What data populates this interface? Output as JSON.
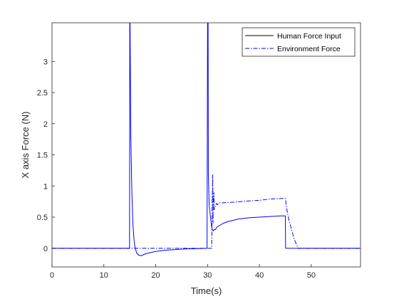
{
  "chart_data": {
    "type": "line",
    "title": "",
    "xlabel": "Time(s)",
    "ylabel": "X axis Force (N)",
    "xlim": [
      0,
      59.5
    ],
    "ylim": [
      -0.3,
      3.62
    ],
    "xticks": [
      0,
      10,
      20,
      30,
      40,
      50
    ],
    "yticks": [
      0,
      0.5,
      1,
      1.5,
      2,
      2.5,
      3
    ],
    "ytick_labels": [
      "0",
      "0.5",
      "1",
      "1.5",
      "2",
      "2.5",
      "3"
    ],
    "grid": false,
    "legend": {
      "placement": "top-right",
      "box": true
    },
    "colors": {
      "series": "#0000ff",
      "axes": "#262626"
    },
    "series": [
      {
        "name": "Human Force Input",
        "style": "solid",
        "x": [
          0,
          14.95,
          15.0,
          15.05,
          15.2,
          15.4,
          15.6,
          15.8,
          16.0,
          16.3,
          16.7,
          17.2,
          18.0,
          19.0,
          20.0,
          22.0,
          24.0,
          26.0,
          28.0,
          29.9,
          30.0,
          30.1,
          30.15,
          30.3,
          30.5,
          30.7,
          30.9,
          31.1,
          31.3,
          31.5,
          31.8,
          32.2,
          33.0,
          34.0,
          35.0,
          36.0,
          38.0,
          40.0,
          42.0,
          44.0,
          44.9,
          45.0,
          45.05,
          59.5
        ],
        "y": [
          0,
          0,
          3.62,
          3.62,
          1.8,
          0.9,
          0.4,
          0.15,
          0.02,
          -0.07,
          -0.11,
          -0.12,
          -0.09,
          -0.07,
          -0.05,
          -0.03,
          -0.02,
          -0.01,
          -0.005,
          0,
          3.62,
          3.62,
          1.2,
          0.7,
          0.55,
          0.4,
          0.3,
          0.28,
          0.3,
          0.3,
          0.34,
          0.36,
          0.4,
          0.43,
          0.45,
          0.47,
          0.49,
          0.5,
          0.51,
          0.52,
          0.52,
          0.52,
          0,
          0
        ]
      },
      {
        "name": "Environment Force",
        "style": "dashdot",
        "x": [
          0,
          30.8,
          30.9,
          31.0,
          31.05,
          31.1,
          31.2,
          31.3,
          31.5,
          31.7,
          31.9,
          32.2,
          33.0,
          35.0,
          38.0,
          40.0,
          42.0,
          44.0,
          44.9,
          45.0,
          45.3,
          45.7,
          46.2,
          46.7,
          47.2,
          47.5,
          59.5
        ],
        "y": [
          0,
          0,
          0.8,
          1.18,
          0.4,
          0.68,
          0.9,
          0.62,
          0.68,
          0.72,
          0.7,
          0.73,
          0.73,
          0.74,
          0.76,
          0.77,
          0.79,
          0.8,
          0.8,
          0.8,
          0.62,
          0.45,
          0.3,
          0.15,
          0.05,
          0,
          0
        ]
      }
    ]
  }
}
